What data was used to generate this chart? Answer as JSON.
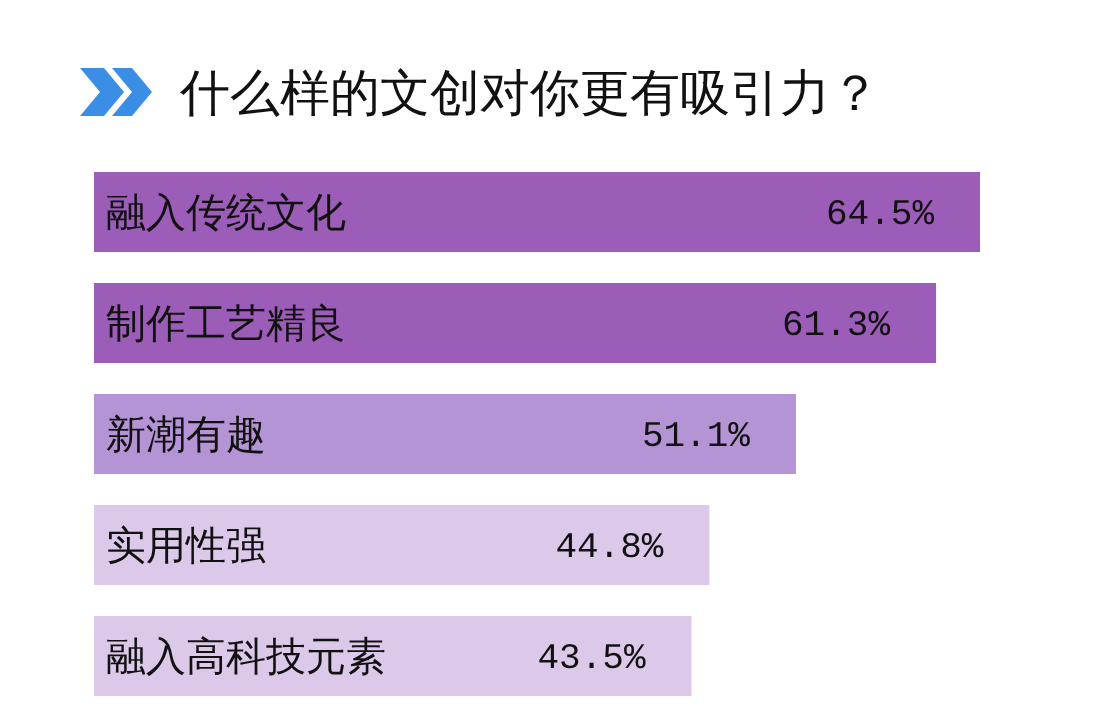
{
  "chart_data": {
    "type": "bar",
    "orientation": "horizontal",
    "title": "什么样的文创对你更有吸引力？",
    "categories": [
      "融入传统文化",
      "制作工艺精良",
      "新潮有趣",
      "实用性强",
      "融入高科技元素"
    ],
    "values": [
      64.5,
      61.3,
      51.1,
      44.8,
      43.5
    ],
    "colors": [
      "#9c5db8",
      "#9c5db8",
      "#b594d6",
      "#dcc9ea",
      "#dcc9ea"
    ],
    "value_labels": [
      "64.5%",
      "61.3%",
      "51.1%",
      "44.8%",
      "43.5%"
    ]
  }
}
